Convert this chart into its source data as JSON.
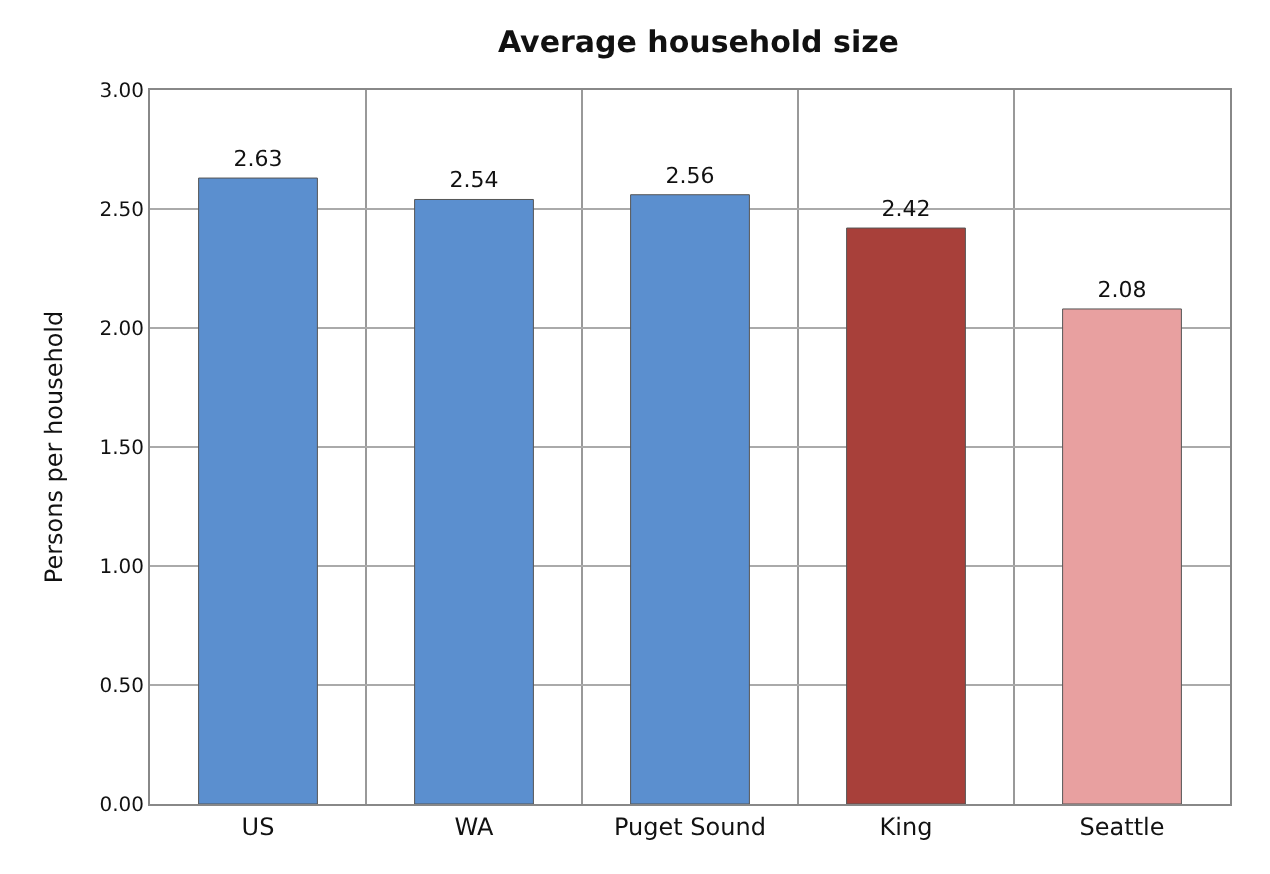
{
  "chart_data": {
    "type": "bar",
    "title": "Average household size",
    "ylabel": "Persons per household",
    "categories": [
      "US",
      "WA",
      "Puget Sound",
      "King",
      "Seattle"
    ],
    "values": [
      2.63,
      2.54,
      2.56,
      2.42,
      2.08
    ],
    "colors": [
      "#5b8fcf",
      "#5b8fcf",
      "#5b8fcf",
      "#a8403a",
      "#e8a0a0"
    ],
    "value_labels": [
      "2.63",
      "2.54",
      "2.56",
      "2.42",
      "2.08"
    ],
    "ylim": [
      0,
      3
    ],
    "yticks": [
      {
        "value": 0,
        "label": "0.00"
      },
      {
        "value": 0.5,
        "label": "0.50"
      },
      {
        "value": 1,
        "label": "1.00"
      },
      {
        "value": 1.5,
        "label": "1.50"
      },
      {
        "value": 2,
        "label": "2.00"
      },
      {
        "value": 2.5,
        "label": "2.50"
      },
      {
        "value": 3,
        "label": "3.00"
      }
    ],
    "grid": true
  }
}
